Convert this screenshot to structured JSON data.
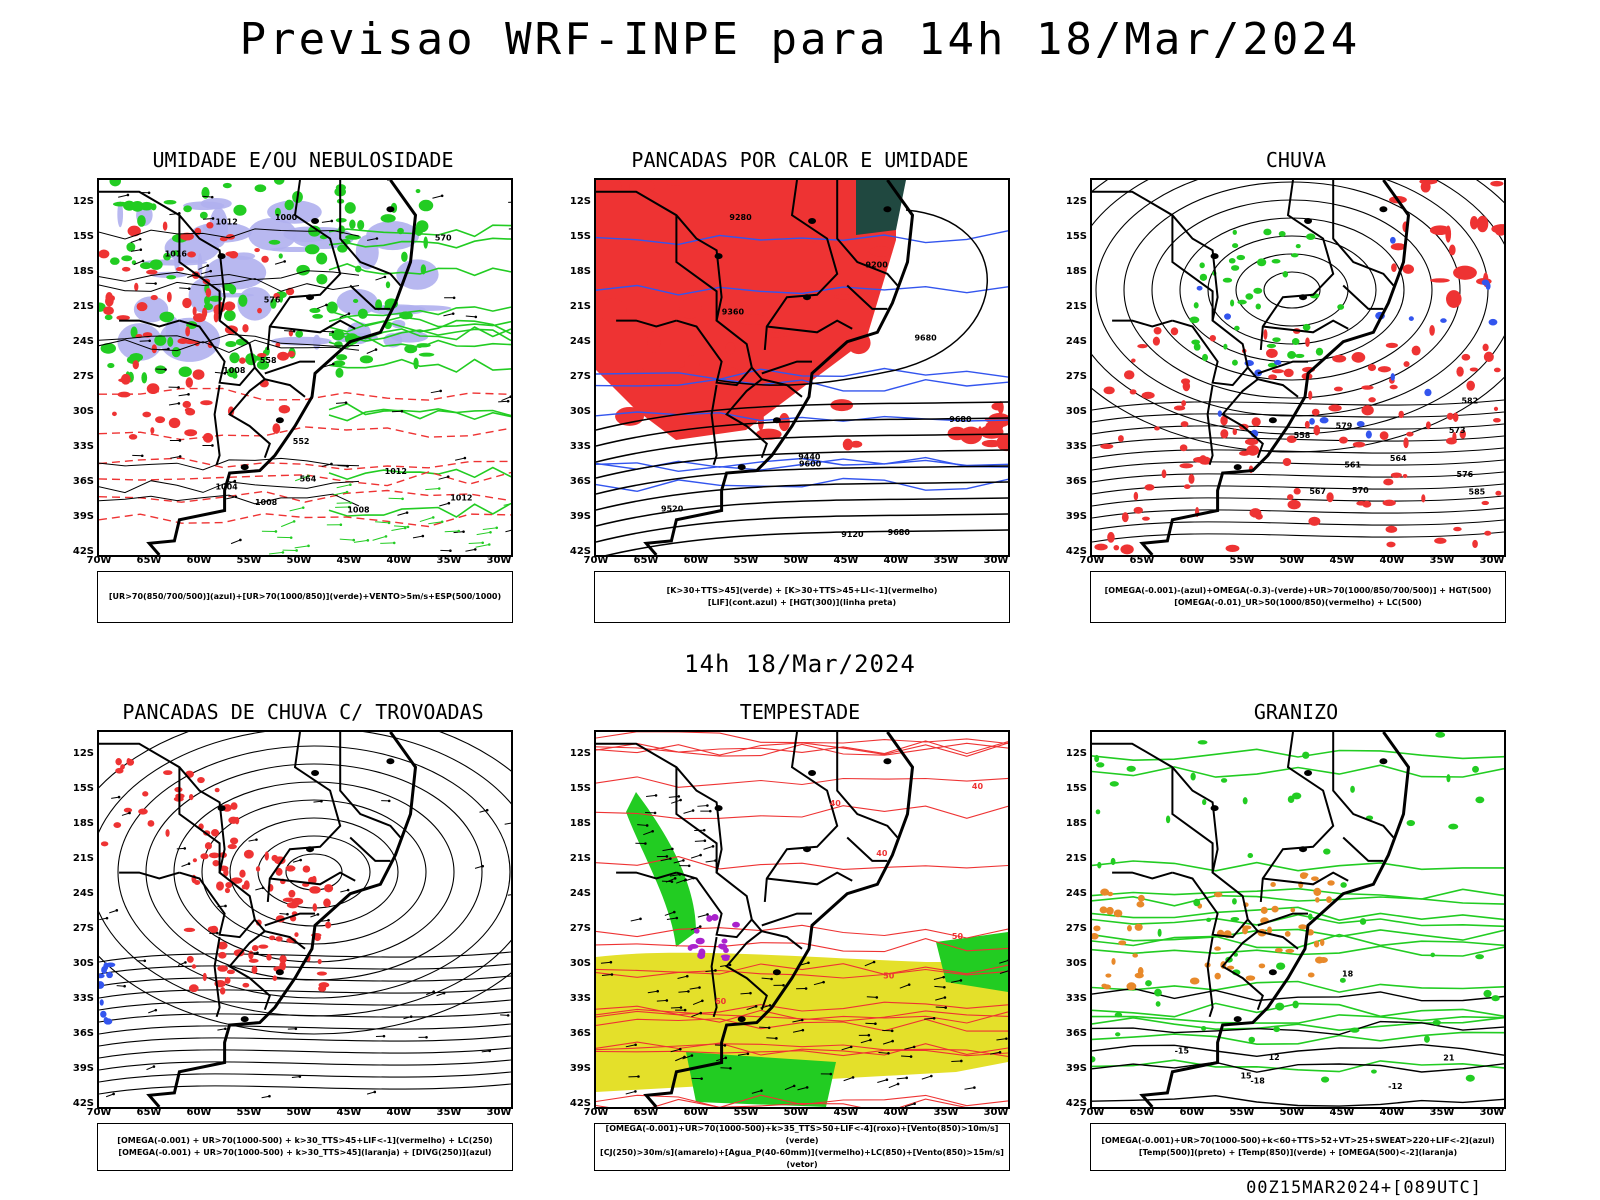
{
  "header": {
    "title": "Previsao WRF-INPE  para 14h 18/Mar/2024",
    "subtitle": "14h 18/Mar/2024",
    "run_info": "00Z15MAR2024+[089UTC]"
  },
  "axes": {
    "lat_labels": [
      "12S",
      "15S",
      "18S",
      "21S",
      "24S",
      "27S",
      "30S",
      "33S",
      "36S",
      "39S",
      "42S"
    ],
    "lon_labels": [
      "70W",
      "65W",
      "60W",
      "55W",
      "50W",
      "45W",
      "40W",
      "35W",
      "30W"
    ]
  },
  "panels": [
    {
      "id": "umidade",
      "title": "UMIDADE E/OU NEBULOSIDADE",
      "legend": [
        "[UR>70(850/700/500)](azul)+[UR>70(1000/850)](verde)+VENTO>5m/s+ESP(500/1000)"
      ],
      "contour_labels": [
        "1008",
        "1008",
        "1004",
        "1012",
        "1012",
        "1016",
        "1008",
        "1012",
        "1000",
        "576",
        "570",
        "564",
        "558",
        "552"
      ]
    },
    {
      "id": "pancadas-calor",
      "title": "PANCADAS POR CALOR E UMIDADE",
      "legend": [
        "[K>30+TTS>45](verde) + [K>30+TTS>45+LI<-1](vermelho)",
        "[LIF](cont.azul) + [HGT(300)](linha preta)"
      ],
      "contour_labels": [
        "9680",
        "9680",
        "9600",
        "9520",
        "9440",
        "9360",
        "9280",
        "9200",
        "9120",
        "9680"
      ]
    },
    {
      "id": "chuva",
      "title": "CHUVA",
      "legend": [
        "[OMEGA(-0.001)-(azul)+OMEGA(-0.3)-(verde)+UR>70(1000/850/700/500)] + HGT(500)",
        "[OMEGA(-0.01)_UR>50(1000/850)(vermelho) + LC(500)"
      ],
      "contour_labels": [
        "585",
        "582",
        "579",
        "576",
        "573",
        "570",
        "567",
        "564",
        "561",
        "558"
      ]
    },
    {
      "id": "trovoadas",
      "title": "PANCADAS DE CHUVA C/ TROVOADAS",
      "legend": [
        "[OMEGA(-0.001) + UR>70(1000-500) + k>30_TTS>45+LIF<-1](vermelho) + LC(250)",
        "[OMEGA(-0.001) + UR>70(1000-500) + k>30_TTS>45](laranja) + [DIVG(250)](azul)"
      ],
      "contour_labels": []
    },
    {
      "id": "tempestade",
      "title": "TEMPESTADE",
      "legend": [
        "[OMEGA(-0.001)+UR>70(1000-500)+k>35_TTS>50+LIF<-4](roxo)+[Vento(850)>10m/s](verde)",
        "[CJ(250)>30m/s](amarelo)+[Agua_P(40-60mm)](vermelho)+LC(850)+[Vento(850)>15m/s](vetor)"
      ],
      "contour_labels": [
        "40",
        "50",
        "60",
        "40",
        "50",
        "40"
      ]
    },
    {
      "id": "granizo",
      "title": "GRANIZO",
      "legend": [
        "[OMEGA(-0.001)+UR>70(1000-500)+k<60+TTS>52+VT>25+SWEAT>220+LIF<-2](azul)",
        "[Temp(500)](preto) + [Temp(850)](verde) + [OMEGA(500)<-2](laranja)"
      ],
      "contour_labels": [
        "-12",
        "-15",
        "-18",
        "21",
        "18",
        "15",
        "12"
      ]
    }
  ],
  "colors": {
    "red": "#ee3333",
    "green": "#22cc22",
    "blue": "#3355ee",
    "lavender": "#b0b0ee",
    "yellow": "#e4e02a",
    "dark_teal": "#204840",
    "orange": "#e8892a",
    "purple": "#aa22cc"
  }
}
